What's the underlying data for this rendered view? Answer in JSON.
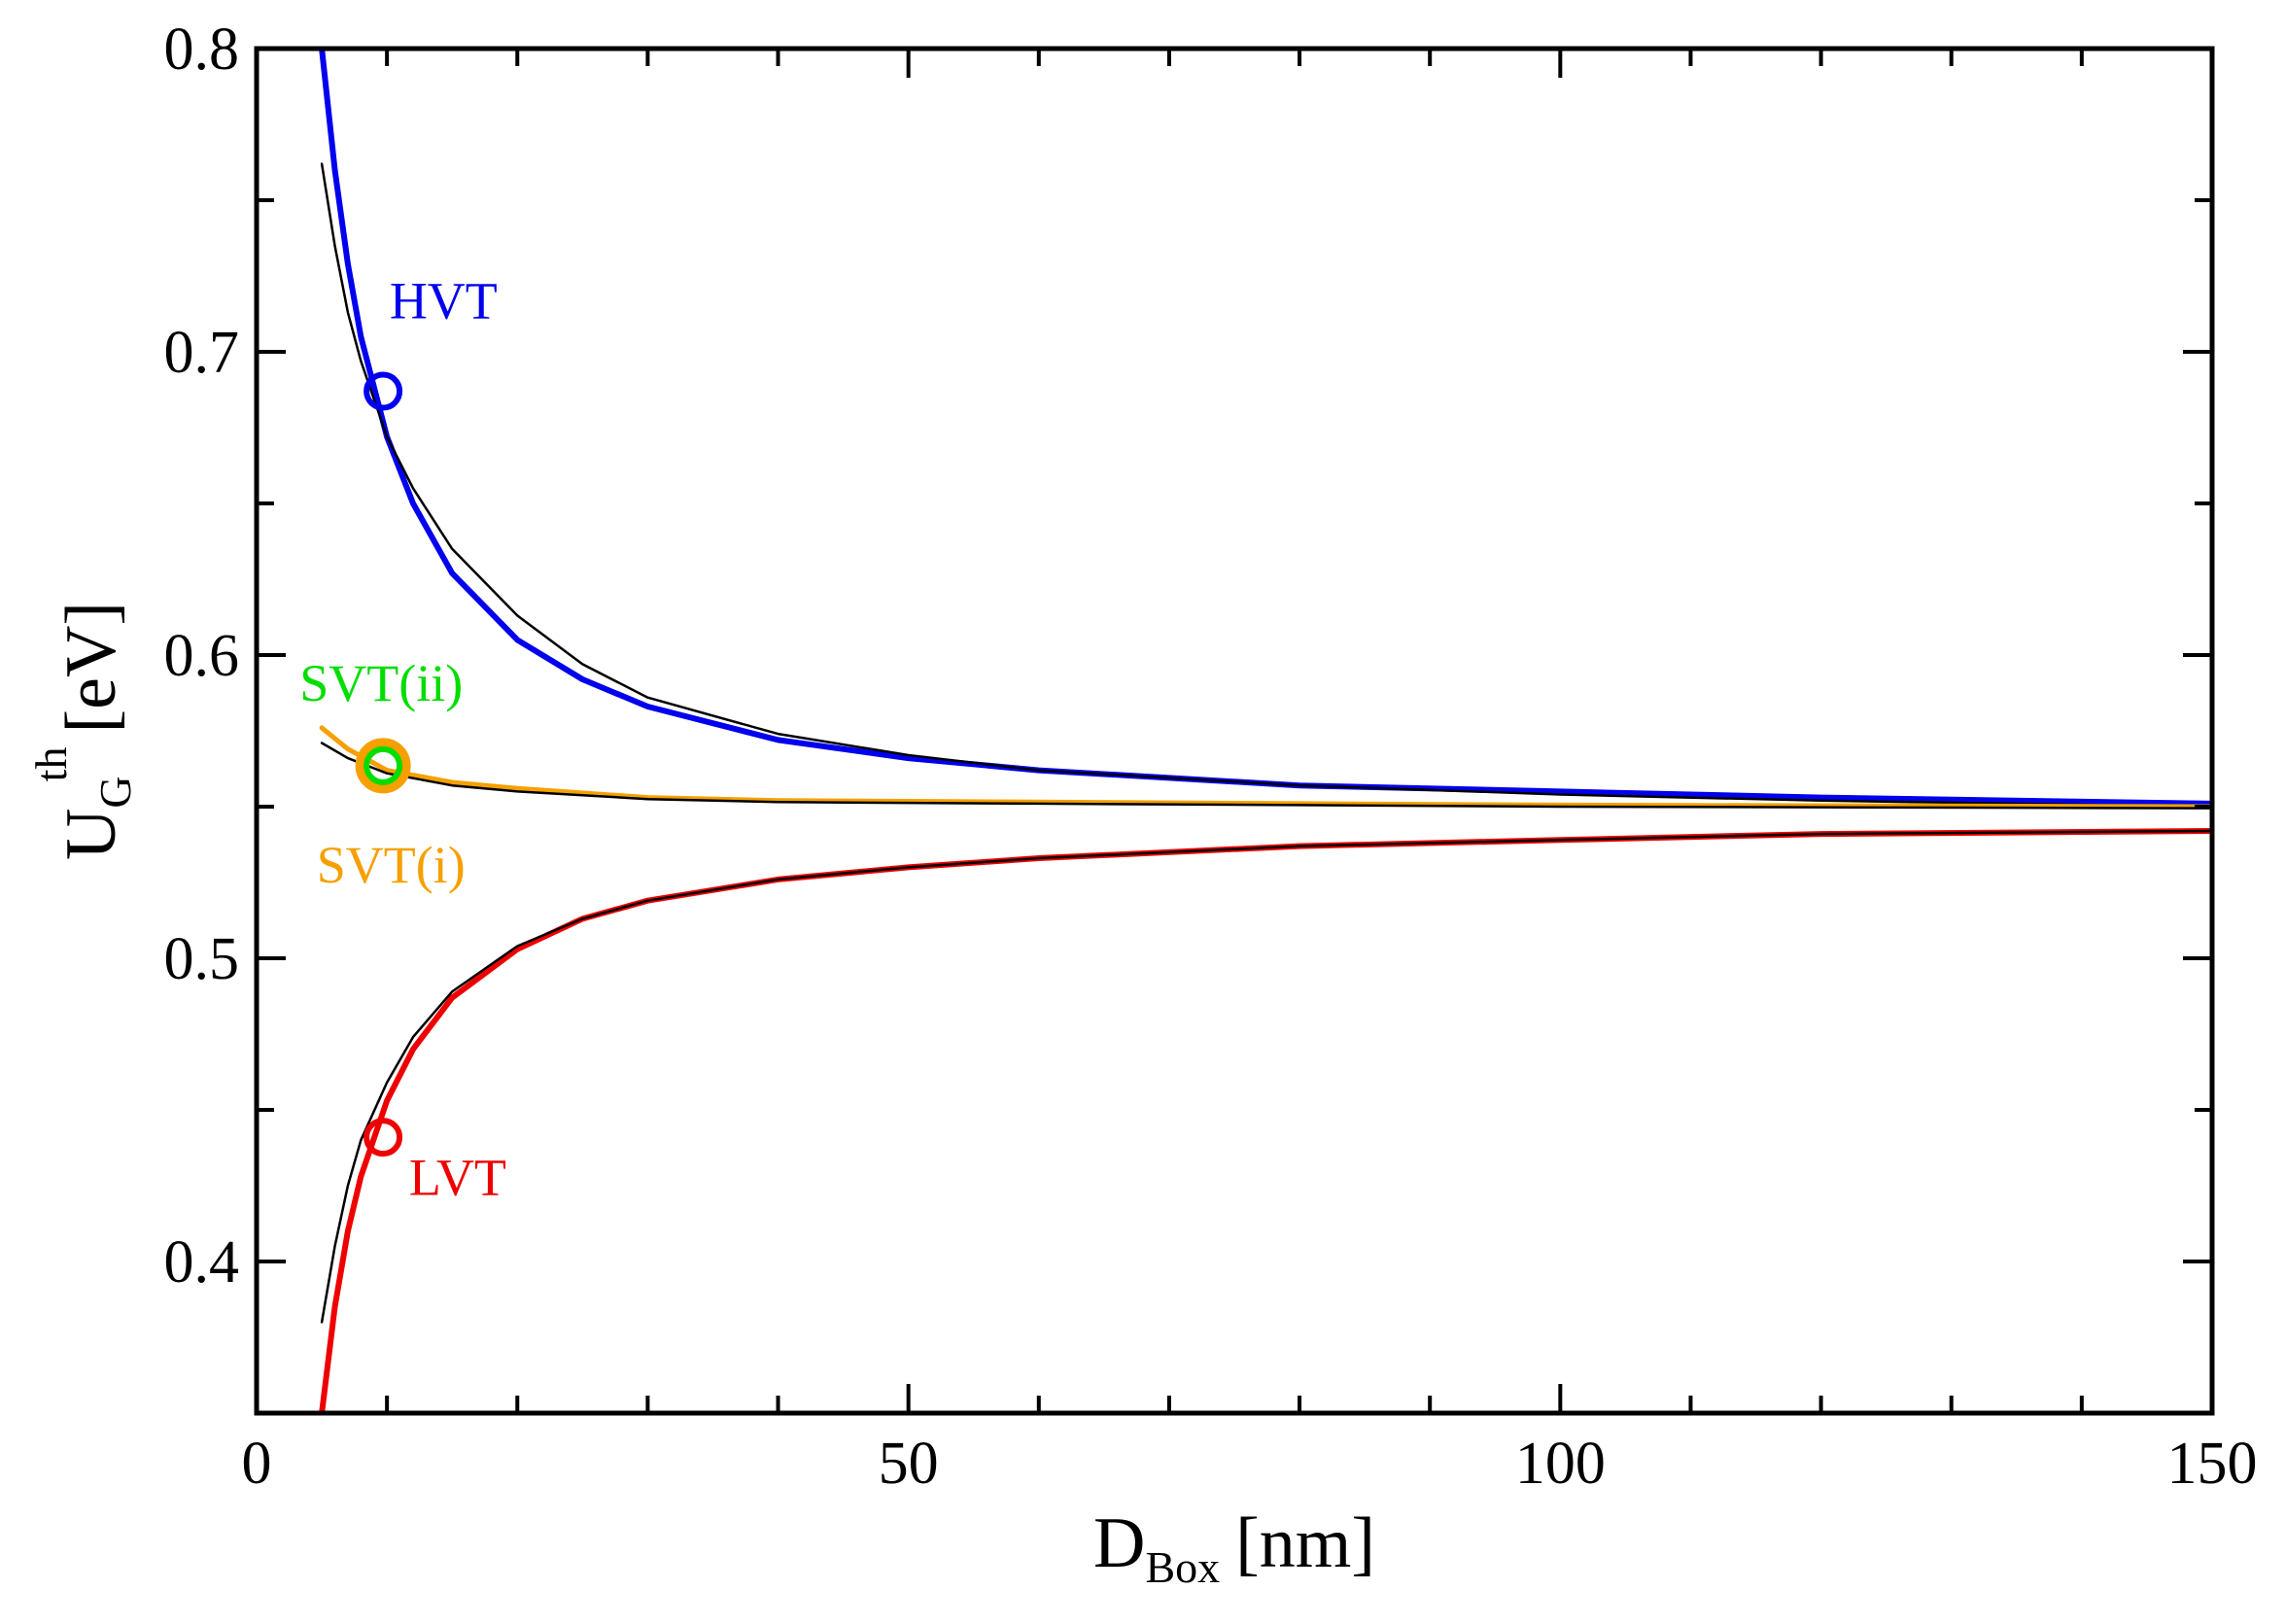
{
  "chart_data": {
    "type": "line",
    "title": "",
    "xlabel": {
      "main": "D",
      "sub": "Box",
      "unit": "[nm]"
    },
    "ylabel": {
      "main": "U",
      "sub": "G",
      "sup": "th",
      "unit": "[eV]"
    },
    "xlim": [
      0,
      150
    ],
    "ylim": [
      0.35,
      0.8
    ],
    "x_ticks": [
      0,
      50,
      100,
      150
    ],
    "x_tick_labels": [
      "0",
      "50",
      "100",
      "150"
    ],
    "x_minor_step": 10,
    "y_ticks": [
      0.4,
      0.5,
      0.6,
      0.7,
      0.8
    ],
    "y_tick_labels": [
      "0.4",
      "0.5",
      "0.6",
      "0.7",
      "0.8"
    ],
    "y_minor_step": 0.05,
    "grid": false,
    "series": [
      {
        "name": "HVT",
        "color": "#0000ee",
        "width": 6,
        "x": [
          5,
          6,
          7,
          8,
          10,
          12,
          15,
          20,
          25,
          30,
          40,
          50,
          60,
          80,
          100,
          120,
          150
        ],
        "y": [
          0.8,
          0.76,
          0.729,
          0.705,
          0.672,
          0.65,
          0.627,
          0.605,
          0.592,
          0.583,
          0.572,
          0.566,
          0.562,
          0.557,
          0.555,
          0.553,
          0.551
        ]
      },
      {
        "name": "HVT fit",
        "color": "#000000",
        "width": 2.5,
        "x": [
          5,
          6,
          7,
          8,
          10,
          12,
          15,
          20,
          25,
          30,
          40,
          50,
          60,
          80,
          100,
          120,
          150
        ],
        "y": [
          0.762,
          0.735,
          0.713,
          0.697,
          0.672,
          0.655,
          0.635,
          0.613,
          0.597,
          0.586,
          0.574,
          0.567,
          0.562,
          0.557,
          0.554,
          0.552,
          0.55
        ]
      },
      {
        "name": "SVT(i)",
        "color": "#f5a000",
        "width": 5,
        "x": [
          5,
          7,
          10,
          15,
          20,
          30,
          40,
          60,
          80,
          100,
          150
        ],
        "y": [
          0.576,
          0.569,
          0.562,
          0.558,
          0.556,
          0.553,
          0.552,
          0.5515,
          0.551,
          0.5505,
          0.55
        ]
      },
      {
        "name": "SVT fit",
        "color": "#000000",
        "width": 2.5,
        "x": [
          5,
          7,
          10,
          15,
          20,
          30,
          40,
          60,
          80,
          100,
          150
        ],
        "y": [
          0.571,
          0.566,
          0.561,
          0.557,
          0.555,
          0.5525,
          0.5515,
          0.551,
          0.5505,
          0.55,
          0.5495
        ]
      },
      {
        "name": "LVT",
        "color": "#ee0000",
        "width": 6,
        "x": [
          5,
          6,
          7,
          8,
          10,
          12,
          15,
          20,
          25,
          30,
          40,
          50,
          60,
          80,
          100,
          120,
          150
        ],
        "y": [
          0.35,
          0.385,
          0.41,
          0.428,
          0.453,
          0.47,
          0.487,
          0.503,
          0.513,
          0.519,
          0.526,
          0.53,
          0.533,
          0.537,
          0.539,
          0.541,
          0.542
        ]
      },
      {
        "name": "LVT fit",
        "color": "#000000",
        "width": 2.5,
        "x": [
          5,
          6,
          7,
          8,
          10,
          12,
          15,
          20,
          25,
          30,
          40,
          50,
          60,
          80,
          100,
          120,
          150
        ],
        "y": [
          0.38,
          0.405,
          0.425,
          0.44,
          0.459,
          0.474,
          0.489,
          0.504,
          0.513,
          0.519,
          0.526,
          0.53,
          0.533,
          0.537,
          0.539,
          0.541,
          0.542
        ]
      }
    ],
    "markers": [
      {
        "name": "HVT",
        "x": 9.7,
        "y": 0.687,
        "color": "#0000ee"
      },
      {
        "name": "SVT(i)",
        "x": 9.7,
        "y": 0.5635,
        "color": "#f5a000",
        "big": true
      },
      {
        "name": "SVT(ii)",
        "x": 9.7,
        "y": 0.5635,
        "color": "#00dd00"
      },
      {
        "name": "LVT",
        "x": 9.7,
        "y": 0.441,
        "color": "#ee0000"
      }
    ],
    "annotations": [
      {
        "text": "HVT",
        "x": 10.2,
        "y": 0.711,
        "color": "#0000ee"
      },
      {
        "text": "SVT(ii)",
        "x": 3.3,
        "y": 0.585,
        "color": "#00dd00"
      },
      {
        "text": "SVT(i)",
        "x": 4.6,
        "y": 0.525,
        "color": "#f5a000"
      },
      {
        "text": "LVT",
        "x": 11.7,
        "y": 0.422,
        "color": "#ee0000"
      }
    ]
  }
}
